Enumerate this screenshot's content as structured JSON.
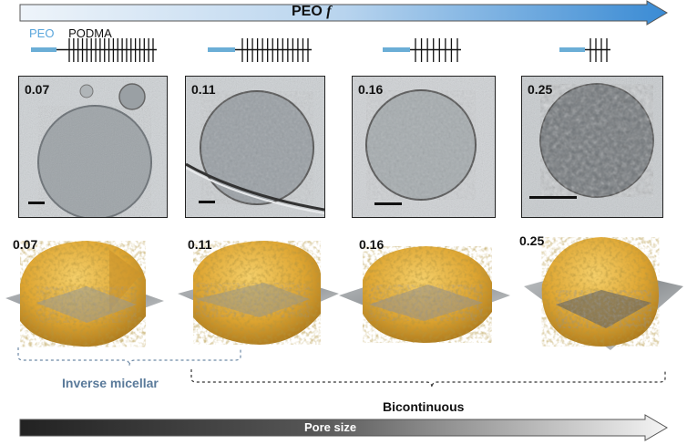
{
  "top_arrow": {
    "label": "PEO",
    "label_italic": "f"
  },
  "legend": {
    "peo": "PEO",
    "podma": "PODMA"
  },
  "panels": [
    {
      "label": "0.07"
    },
    {
      "label": "0.11"
    },
    {
      "label": "0.16"
    },
    {
      "label": "0.25"
    }
  ],
  "renders": [
    {
      "label": "0.07"
    },
    {
      "label": "0.11"
    },
    {
      "label": "0.16"
    },
    {
      "label": "0.25"
    }
  ],
  "brackets": {
    "inverse": "Inverse micellar",
    "bicontinuous": "Bicontinuous"
  },
  "bottom_arrow": {
    "label": "Pore size"
  },
  "colors": {
    "peo_blue": "#6baed6",
    "arrow_top_start": "#eaf2fa",
    "arrow_top_end": "#3d8fd6",
    "arrow_bottom_start": "#222222",
    "arrow_bottom_end": "#f2f2f2",
    "gold": "#e8b43a",
    "inverse_label": "#5a7a9a"
  }
}
